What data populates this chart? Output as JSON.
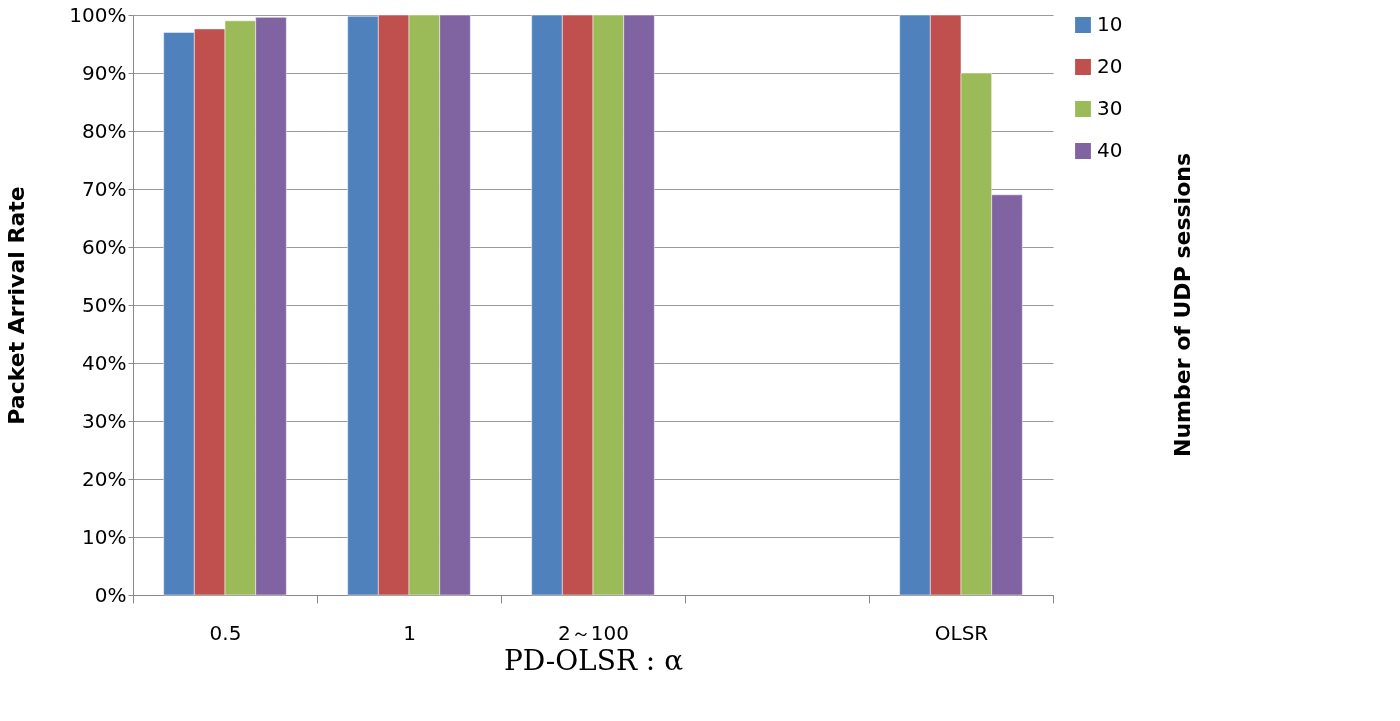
{
  "chart_data": {
    "type": "bar",
    "xlabel": "PD-OLSR : α",
    "ylabel": "Packet Arrival Rate",
    "legend_title": "Number of UDP sessions",
    "categories": [
      "0.5",
      "1",
      "2～100",
      null,
      "OLSR"
    ],
    "series": [
      {
        "name": "10",
        "color": "#4f81bd",
        "values": [
          97,
          99.8,
          100,
          null,
          100
        ]
      },
      {
        "name": "20",
        "color": "#c0504d",
        "values": [
          97.6,
          100,
          100,
          null,
          100
        ]
      },
      {
        "name": "30",
        "color": "#9bbb59",
        "values": [
          99,
          100,
          100,
          null,
          90
        ]
      },
      {
        "name": "40",
        "color": "#8064a2",
        "values": [
          99.6,
          100,
          100,
          null,
          69
        ]
      }
    ],
    "ylim": [
      0,
      100
    ],
    "yticks": [
      {
        "value": 0,
        "label": "0%"
      },
      {
        "value": 10,
        "label": "10%"
      },
      {
        "value": 20,
        "label": "20%"
      },
      {
        "value": 30,
        "label": "30%"
      },
      {
        "value": 40,
        "label": "40%"
      },
      {
        "value": 50,
        "label": "50%"
      },
      {
        "value": 60,
        "label": "60%"
      },
      {
        "value": 70,
        "label": "70%"
      },
      {
        "value": 80,
        "label": "80%"
      },
      {
        "value": 90,
        "label": "90%"
      },
      {
        "value": 100,
        "label": "100%"
      }
    ],
    "grid": "y",
    "legend": "right"
  }
}
